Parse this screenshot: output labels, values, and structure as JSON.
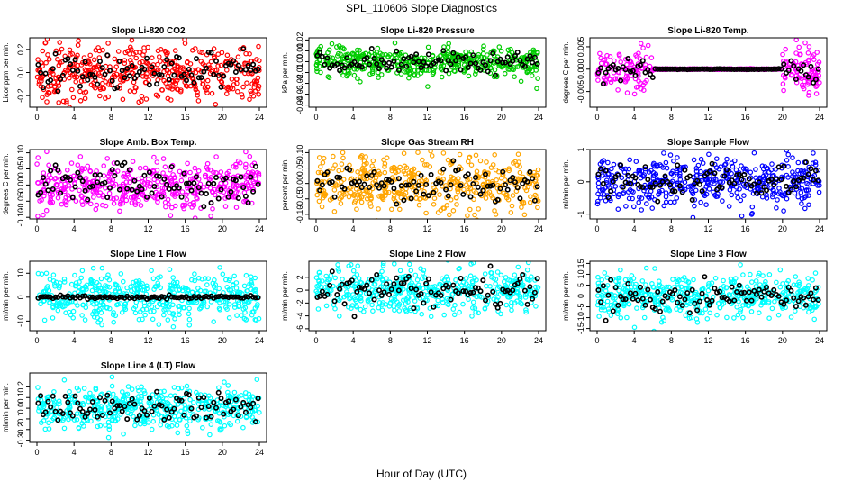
{
  "figure": {
    "title": "SPL_110606  Slope Diagnostics",
    "xlabel": "Hour of Day (UTC)"
  },
  "colors": {
    "red": "#ff0000",
    "green": "#00cc00",
    "magenta": "#ff00ff",
    "orange": "#ffa500",
    "blue": "#0000ff",
    "cyan": "#00ffff",
    "overlay": "#000000"
  },
  "chart_data": [
    {
      "type": "scatter",
      "title": "Slope Li-820 CO2",
      "ylabel": "Licor ppm per min.",
      "xlim": [
        0,
        24
      ],
      "ylim": [
        -0.3,
        0.3
      ],
      "xticks": [
        "0",
        "4",
        "8",
        "12",
        "16",
        "20",
        "24"
      ],
      "yticks": [
        "-0.2",
        "0.0",
        "0.2"
      ],
      "ytick_values": [
        -0.2,
        0.0,
        0.2
      ],
      "color": "red",
      "spread": 0.12,
      "overlay_spread": 0.08,
      "center": 0.0,
      "flat_from": null,
      "flat_to": null
    },
    {
      "type": "scatter",
      "title": "Slope Li-820 Pressure",
      "ylabel": "kPa per min.",
      "xlim": [
        0,
        24
      ],
      "ylim": [
        -0.042,
        0.022
      ],
      "xticks": [
        "0",
        "4",
        "8",
        "12",
        "16",
        "20",
        "24"
      ],
      "yticks": [
        "-0.04",
        "-0.03",
        "-0.02",
        "-0.01",
        "0.00",
        "0.01",
        "0.02"
      ],
      "ytick_values": [
        -0.04,
        -0.03,
        -0.02,
        -0.01,
        0.0,
        0.01,
        0.02
      ],
      "color": "green",
      "spread": 0.007,
      "overlay_spread": 0.005,
      "center": 0.0,
      "flat_from": null,
      "flat_to": null
    },
    {
      "type": "scatter",
      "title": "Slope Li-820 Temp.",
      "ylabel": "degrees C per min.",
      "xlim": [
        0,
        24
      ],
      "ylim": [
        -0.0085,
        0.007
      ],
      "xticks": [
        "0",
        "4",
        "8",
        "12",
        "16",
        "20",
        "24"
      ],
      "yticks": [
        "-0.005",
        "0.000",
        "0.005"
      ],
      "ytick_values": [
        -0.005,
        0.0,
        0.005
      ],
      "color": "magenta",
      "spread": 0.0025,
      "overlay_spread": 0.0015,
      "center": 0.0,
      "flat_from": 6,
      "flat_to": 20
    },
    {
      "type": "scatter",
      "title": "Slope Amb. Box Temp.",
      "ylabel": "degrees C per min.",
      "xlim": [
        0,
        24
      ],
      "ylim": [
        -0.105,
        0.11
      ],
      "xticks": [
        "0",
        "4",
        "8",
        "12",
        "16",
        "20",
        "24"
      ],
      "yticks": [
        "-0.10",
        "-0.05",
        "0.00",
        "0.05",
        "0.10"
      ],
      "ytick_values": [
        -0.1,
        -0.05,
        0.0,
        0.05,
        0.1
      ],
      "color": "magenta",
      "spread": 0.04,
      "overlay_spread": 0.03,
      "center": 0.0,
      "flat_from": null,
      "flat_to": null
    },
    {
      "type": "scatter",
      "title": "Slope Gas Stream RH",
      "ylabel": "percent per min.",
      "xlim": [
        0,
        24
      ],
      "ylim": [
        -0.115,
        0.11
      ],
      "xticks": [
        "0",
        "4",
        "8",
        "12",
        "16",
        "20",
        "24"
      ],
      "yticks": [
        "-0.10",
        "-0.05",
        "0.00",
        "0.05",
        "0.10"
      ],
      "ytick_values": [
        -0.1,
        -0.05,
        0.0,
        0.05,
        0.1
      ],
      "color": "orange",
      "spread": 0.045,
      "overlay_spread": 0.03,
      "center": 0.0,
      "flat_from": null,
      "flat_to": null
    },
    {
      "type": "scatter",
      "title": "Slope Sample Flow",
      "ylabel": "ml/min per min.",
      "xlim": [
        0,
        24
      ],
      "ylim": [
        -1.15,
        1.0
      ],
      "xticks": [
        "0",
        "4",
        "8",
        "12",
        "16",
        "20",
        "24"
      ],
      "yticks": [
        "-1",
        "0",
        "1"
      ],
      "ytick_values": [
        -1,
        0,
        1
      ],
      "color": "blue",
      "spread": 0.38,
      "overlay_spread": 0.25,
      "center": 0.0,
      "flat_from": null,
      "flat_to": null
    },
    {
      "type": "scatter",
      "title": "Slope Line 1 Flow",
      "ylabel": "ml/min per min.",
      "xlim": [
        0,
        24
      ],
      "ylim": [
        -14,
        15
      ],
      "xticks": [
        "0",
        "4",
        "8",
        "12",
        "16",
        "20",
        "24"
      ],
      "yticks": [
        "-10",
        "0",
        "10"
      ],
      "ytick_values": [
        -10,
        0,
        10
      ],
      "color": "cyan",
      "spread": 5.0,
      "overlay_spread": 0.3,
      "center": 0.0,
      "flat_from": null,
      "flat_to": null
    },
    {
      "type": "scatter",
      "title": "Slope Line 2 Flow",
      "ylabel": "ml/min per min.",
      "xlim": [
        0,
        24
      ],
      "ylim": [
        -6.3,
        4.5
      ],
      "xticks": [
        "0",
        "4",
        "8",
        "12",
        "16",
        "20",
        "24"
      ],
      "yticks": [
        "-6",
        "-4",
        "-2",
        "0",
        "2"
      ],
      "ytick_values": [
        -6,
        -4,
        -2,
        0,
        2
      ],
      "color": "cyan",
      "spread": 1.8,
      "overlay_spread": 1.4,
      "center": 0.0,
      "flat_from": null,
      "flat_to": null
    },
    {
      "type": "scatter",
      "title": "Slope Line 3 Flow",
      "ylabel": "ml/min per min.",
      "xlim": [
        0,
        24
      ],
      "ylim": [
        -16,
        16
      ],
      "xticks": [
        "0",
        "4",
        "8",
        "12",
        "16",
        "20",
        "24"
      ],
      "yticks": [
        "-15",
        "-10",
        "-5",
        "0",
        "5",
        "10",
        "15"
      ],
      "ytick_values": [
        -15,
        -10,
        -5,
        0,
        5,
        10,
        15
      ],
      "color": "cyan",
      "spread": 5.0,
      "overlay_spread": 3.5,
      "center": 0.0,
      "flat_from": null,
      "flat_to": null
    },
    {
      "type": "scatter",
      "title": "Slope Line 4 (LT) Flow",
      "ylabel": "ml/min per min.",
      "xlim": [
        0,
        24
      ],
      "ylim": [
        -0.32,
        0.33
      ],
      "xticks": [
        "0",
        "4",
        "8",
        "12",
        "16",
        "20",
        "24"
      ],
      "yticks": [
        "-0.3",
        "-0.2",
        "-0.1",
        "0.0",
        "0.1",
        "0.2"
      ],
      "ytick_values": [
        -0.3,
        -0.2,
        -0.1,
        0.0,
        0.1,
        0.2
      ],
      "color": "cyan",
      "spread": 0.1,
      "overlay_spread": 0.08,
      "center": 0.0,
      "flat_from": null,
      "flat_to": null
    }
  ]
}
